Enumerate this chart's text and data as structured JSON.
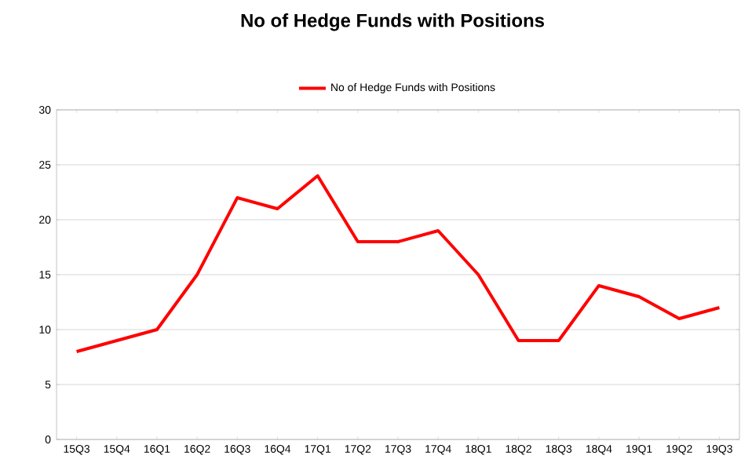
{
  "chart_data": {
    "type": "line",
    "title": "No of Hedge Funds with Positions",
    "categories": [
      "15Q3",
      "15Q4",
      "16Q1",
      "16Q2",
      "16Q3",
      "16Q4",
      "17Q1",
      "17Q2",
      "17Q3",
      "17Q4",
      "18Q1",
      "18Q2",
      "18Q3",
      "18Q4",
      "19Q1",
      "19Q2",
      "19Q3"
    ],
    "series": [
      {
        "name": "No of Hedge Funds with Positions",
        "color": "#ff0000",
        "values": [
          8,
          9,
          10,
          15,
          22,
          21,
          24,
          18,
          18,
          19,
          15,
          9,
          9,
          14,
          13,
          11,
          12
        ]
      }
    ],
    "ylim": [
      0,
      30
    ],
    "yticks": [
      0,
      5,
      10,
      15,
      20,
      25,
      30
    ],
    "grid": "y",
    "legend": "top",
    "marker": "none",
    "line_style": "solid"
  }
}
